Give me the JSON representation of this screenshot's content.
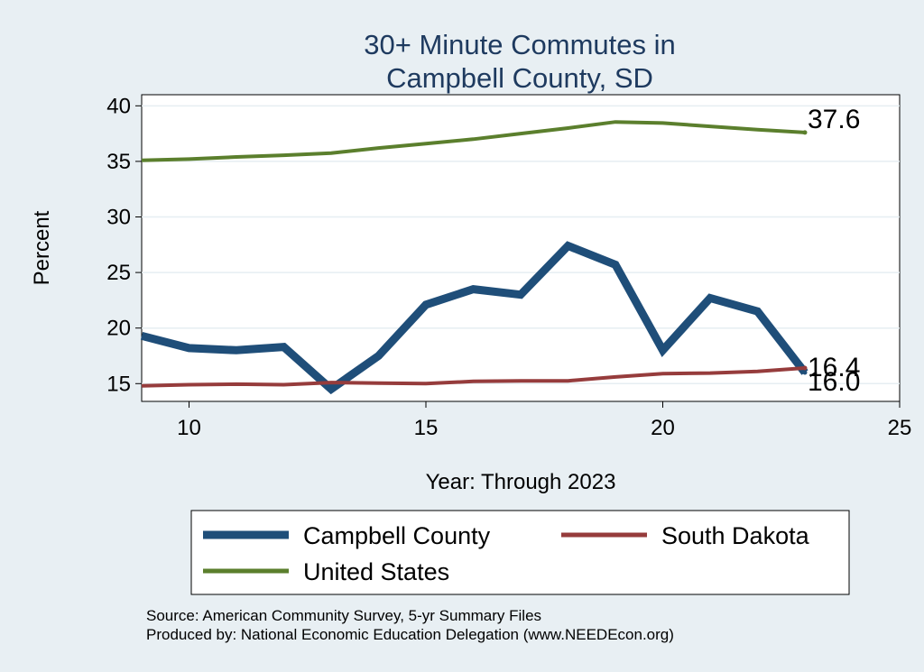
{
  "chart_data": {
    "type": "line",
    "title": [
      "30+ Minute Commutes in",
      "Campbell County, SD"
    ],
    "xlabel": "Year: Through 2023",
    "ylabel": "Percent",
    "xlim": [
      9,
      25
    ],
    "ylim": [
      13.4,
      41
    ],
    "xticks": [
      "10",
      "15",
      "20",
      "25"
    ],
    "yticks": [
      "15",
      "20",
      "25",
      "30",
      "35",
      "40"
    ],
    "grid": true,
    "x": [
      9,
      10,
      11,
      12,
      13,
      14,
      15,
      16,
      17,
      18,
      19,
      20,
      21,
      22,
      23
    ],
    "series": [
      {
        "name": "Campbell County",
        "color": "#1f4e79",
        "values": [
          19.3,
          18.2,
          18.0,
          18.3,
          14.5,
          17.5,
          22.1,
          23.5,
          23.0,
          27.4,
          25.7,
          18.0,
          22.7,
          21.5,
          16.0
        ],
        "end_label": "16.0"
      },
      {
        "name": "South Dakota",
        "color": "#963c3c",
        "values": [
          14.8,
          14.9,
          14.95,
          14.9,
          15.1,
          15.05,
          15.0,
          15.2,
          15.25,
          15.25,
          15.6,
          15.9,
          15.95,
          16.1,
          16.4
        ],
        "end_label": "16.4"
      },
      {
        "name": "United States",
        "color": "#5b7f2d",
        "values": [
          35.1,
          35.2,
          35.4,
          35.55,
          35.75,
          36.2,
          36.6,
          37.0,
          37.5,
          38.0,
          38.55,
          38.45,
          38.15,
          37.85,
          37.6
        ],
        "end_label": "37.6"
      }
    ],
    "legend": {
      "position": "bottom",
      "entries": [
        "Campbell County",
        "South Dakota",
        "United States"
      ]
    },
    "notes": [
      "Source: American Community Survey, 5-yr Summary Files",
      "Produced by: National Economic Education Delegation (www.NEEDEcon.org)"
    ]
  }
}
